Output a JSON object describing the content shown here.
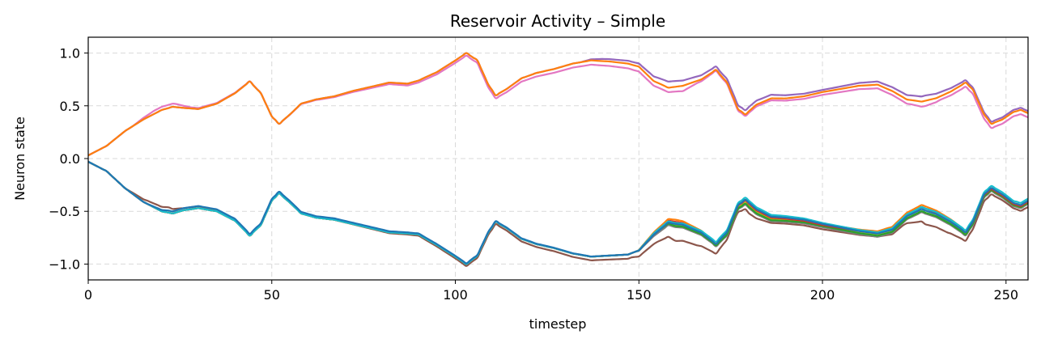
{
  "chart_data": {
    "type": "line",
    "title": "Reservoir Activity – Simple",
    "xlabel": "timestep",
    "ylabel": "Neuron state",
    "xlim": [
      0,
      256
    ],
    "ylim": [
      -1.15,
      1.15
    ],
    "xticks": [
      0,
      50,
      100,
      150,
      200,
      250
    ],
    "yticks": [
      -1.0,
      -0.5,
      0.0,
      0.5,
      1.0
    ],
    "xtick_labels": [
      "0",
      "50",
      "100",
      "150",
      "200",
      "250"
    ],
    "ytick_labels": [
      "−1.0",
      "−0.5",
      "0.0",
      "0.5",
      "1.0"
    ],
    "grid": true,
    "legend": false,
    "base_upper": {
      "x": [
        0,
        5,
        10,
        15,
        20,
        23,
        26,
        30,
        35,
        40,
        44,
        47,
        50,
        52,
        55,
        58,
        62,
        67,
        72,
        77,
        82,
        87,
        90,
        95,
        100,
        103,
        106,
        109,
        111,
        114,
        118,
        122,
        127,
        132,
        137,
        142,
        147,
        150,
        154,
        158,
        162,
        167,
        171,
        174,
        177,
        179,
        182,
        186,
        190,
        195,
        200,
        205,
        210,
        215,
        219,
        223,
        227,
        231,
        235,
        239,
        241,
        244,
        246,
        249,
        252,
        254,
        256
      ],
      "y": [
        0.03,
        0.12,
        0.26,
        0.37,
        0.46,
        0.49,
        0.48,
        0.47,
        0.52,
        0.62,
        0.73,
        0.62,
        0.4,
        0.33,
        0.42,
        0.52,
        0.56,
        0.59,
        0.64,
        0.68,
        0.72,
        0.71,
        0.74,
        0.82,
        0.93,
        1.0,
        0.93,
        0.7,
        0.6,
        0.66,
        0.76,
        0.81,
        0.85,
        0.9,
        0.93,
        0.92,
        0.9,
        0.87,
        0.74,
        0.68,
        0.7,
        0.76,
        0.85,
        0.73,
        0.48,
        0.43,
        0.52,
        0.58,
        0.58,
        0.6,
        0.64,
        0.67,
        0.7,
        0.71,
        0.65,
        0.57,
        0.55,
        0.58,
        0.64,
        0.72,
        0.65,
        0.42,
        0.33,
        0.37,
        0.44,
        0.46,
        0.43
      ]
    },
    "base_lower": {
      "x": [
        0,
        5,
        10,
        15,
        20,
        23,
        26,
        30,
        35,
        40,
        44,
        47,
        50,
        52,
        55,
        58,
        62,
        67,
        72,
        77,
        82,
        87,
        90,
        95,
        100,
        103,
        106,
        109,
        111,
        114,
        118,
        122,
        127,
        132,
        137,
        142,
        147,
        150,
        154,
        158,
        162,
        167,
        171,
        174,
        177,
        179,
        182,
        186,
        190,
        195,
        200,
        205,
        210,
        215,
        219,
        223,
        227,
        231,
        235,
        239,
        241,
        244,
        246,
        249,
        252,
        254,
        256
      ],
      "y": [
        -0.03,
        -0.12,
        -0.28,
        -0.41,
        -0.5,
        -0.52,
        -0.49,
        -0.47,
        -0.5,
        -0.59,
        -0.73,
        -0.63,
        -0.4,
        -0.33,
        -0.42,
        -0.52,
        -0.56,
        -0.58,
        -0.62,
        -0.66,
        -0.7,
        -0.71,
        -0.72,
        -0.82,
        -0.93,
        -1.0,
        -0.92,
        -0.7,
        -0.6,
        -0.66,
        -0.76,
        -0.81,
        -0.85,
        -0.9,
        -0.93,
        -0.92,
        -0.91,
        -0.87,
        -0.72,
        -0.6,
        -0.62,
        -0.7,
        -0.81,
        -0.7,
        -0.45,
        -0.4,
        -0.49,
        -0.56,
        -0.57,
        -0.59,
        -0.63,
        -0.66,
        -0.69,
        -0.71,
        -0.67,
        -0.54,
        -0.47,
        -0.52,
        -0.6,
        -0.7,
        -0.6,
        -0.35,
        -0.29,
        -0.35,
        -0.43,
        -0.45,
        -0.41
      ]
    },
    "series": [
      {
        "color": "#e377c2",
        "group": "upper",
        "scale": 1.0,
        "offset": 0.0,
        "dev": {
          "x": [
            18,
            24,
            28,
            158,
            162,
            166,
            170,
            224,
            228,
            232
          ],
          "y": [
            0.03,
            0.03,
            0.01,
            -0.05,
            -0.06,
            -0.03,
            -0.02,
            -0.05,
            -0.06,
            -0.04
          ]
        }
      },
      {
        "color": "#9467bd",
        "group": "upper",
        "scale": 1.0,
        "offset": 0.0,
        "dev": {
          "x": [
            140,
            150,
            158,
            162,
            172,
            180,
            200,
            215,
            228,
            240,
            250
          ],
          "y": [
            0.02,
            0.03,
            0.05,
            0.04,
            0.02,
            0.03,
            0.01,
            0.02,
            0.04,
            0.02,
            0.02
          ]
        }
      },
      {
        "color": "#ff7f0e",
        "group": "upper",
        "scale": 1.0,
        "offset": 0.0,
        "dev": {
          "x": [
            150,
            160,
            170,
            180,
            200,
            228,
            240
          ],
          "y": [
            0.0,
            -0.01,
            -0.01,
            -0.01,
            -0.01,
            -0.01,
            0.0
          ]
        }
      },
      {
        "color": "#8c564b",
        "group": "lower",
        "scale": 1.0,
        "offset": 0.0,
        "dev": {
          "x": [
            10,
            16,
            22,
            26,
            148,
            155,
            160,
            166,
            171,
            176,
            180,
            186,
            200,
            215,
            222,
            228,
            234,
            240,
            246,
            252,
            256
          ],
          "y": [
            0.0,
            0.03,
            0.05,
            0.02,
            -0.04,
            -0.1,
            -0.17,
            -0.14,
            -0.09,
            -0.05,
            -0.09,
            -0.05,
            -0.04,
            -0.03,
            -0.06,
            -0.14,
            -0.12,
            -0.07,
            -0.05,
            -0.04,
            -0.05
          ]
        }
      },
      {
        "color": "#7f7f7f",
        "group": "lower",
        "scale": 1.0,
        "offset": 0.0,
        "dev": {
          "x": [
            155,
            160,
            170,
            180,
            200,
            228,
            246
          ],
          "y": [
            -0.02,
            -0.04,
            -0.02,
            -0.04,
            -0.02,
            -0.04,
            -0.02
          ]
        }
      },
      {
        "color": "#bcbd22",
        "group": "lower",
        "scale": 1.0,
        "offset": 0.0,
        "dev": {
          "x": [
            155,
            160,
            170,
            180,
            200,
            228,
            246
          ],
          "y": [
            0.02,
            -0.02,
            0.0,
            -0.02,
            0.0,
            -0.01,
            -0.01
          ]
        }
      },
      {
        "color": "#2ca02c",
        "group": "lower",
        "scale": 1.0,
        "offset": 0.0,
        "dev": {
          "x": [
            155,
            160,
            170,
            180,
            200,
            228,
            246
          ],
          "y": [
            0.0,
            -0.03,
            -0.01,
            -0.03,
            -0.01,
            -0.03,
            -0.01
          ]
        }
      },
      {
        "color": "#d62728",
        "group": "lower",
        "scale": 1.0,
        "offset": 0.0,
        "dev": {
          "x": [
            155,
            160,
            170,
            180,
            200,
            228,
            246
          ],
          "y": [
            0.01,
            0.01,
            0.01,
            0.0,
            0.0,
            0.01,
            0.0
          ]
        }
      },
      {
        "color": "#ff7f0e",
        "group": "lower",
        "scale": 1.0,
        "offset": 0.0,
        "dev": {
          "x": [
            155,
            160,
            170,
            180,
            200,
            228,
            246
          ],
          "y": [
            0.02,
            0.03,
            0.01,
            0.01,
            0.01,
            0.03,
            0.01
          ]
        }
      },
      {
        "color": "#17becf",
        "group": "lower",
        "scale": 1.0,
        "offset": 0.0,
        "dev": {
          "x": [
            155,
            160,
            170,
            180,
            200,
            215,
            228,
            246
          ],
          "y": [
            0.01,
            0.0,
            0.02,
            0.03,
            0.02,
            0.01,
            0.01,
            0.03
          ]
        }
      },
      {
        "color": "#1f77b4",
        "group": "lower",
        "scale": 1.0,
        "offset": 0.0,
        "dev": {
          "x": [
            22,
            28,
            150,
            160,
            170,
            180,
            200,
            228,
            246
          ],
          "y": [
            0.02,
            0.02,
            0.0,
            -0.01,
            0.0,
            0.01,
            0.01,
            -0.01,
            0.01
          ]
        }
      }
    ]
  }
}
